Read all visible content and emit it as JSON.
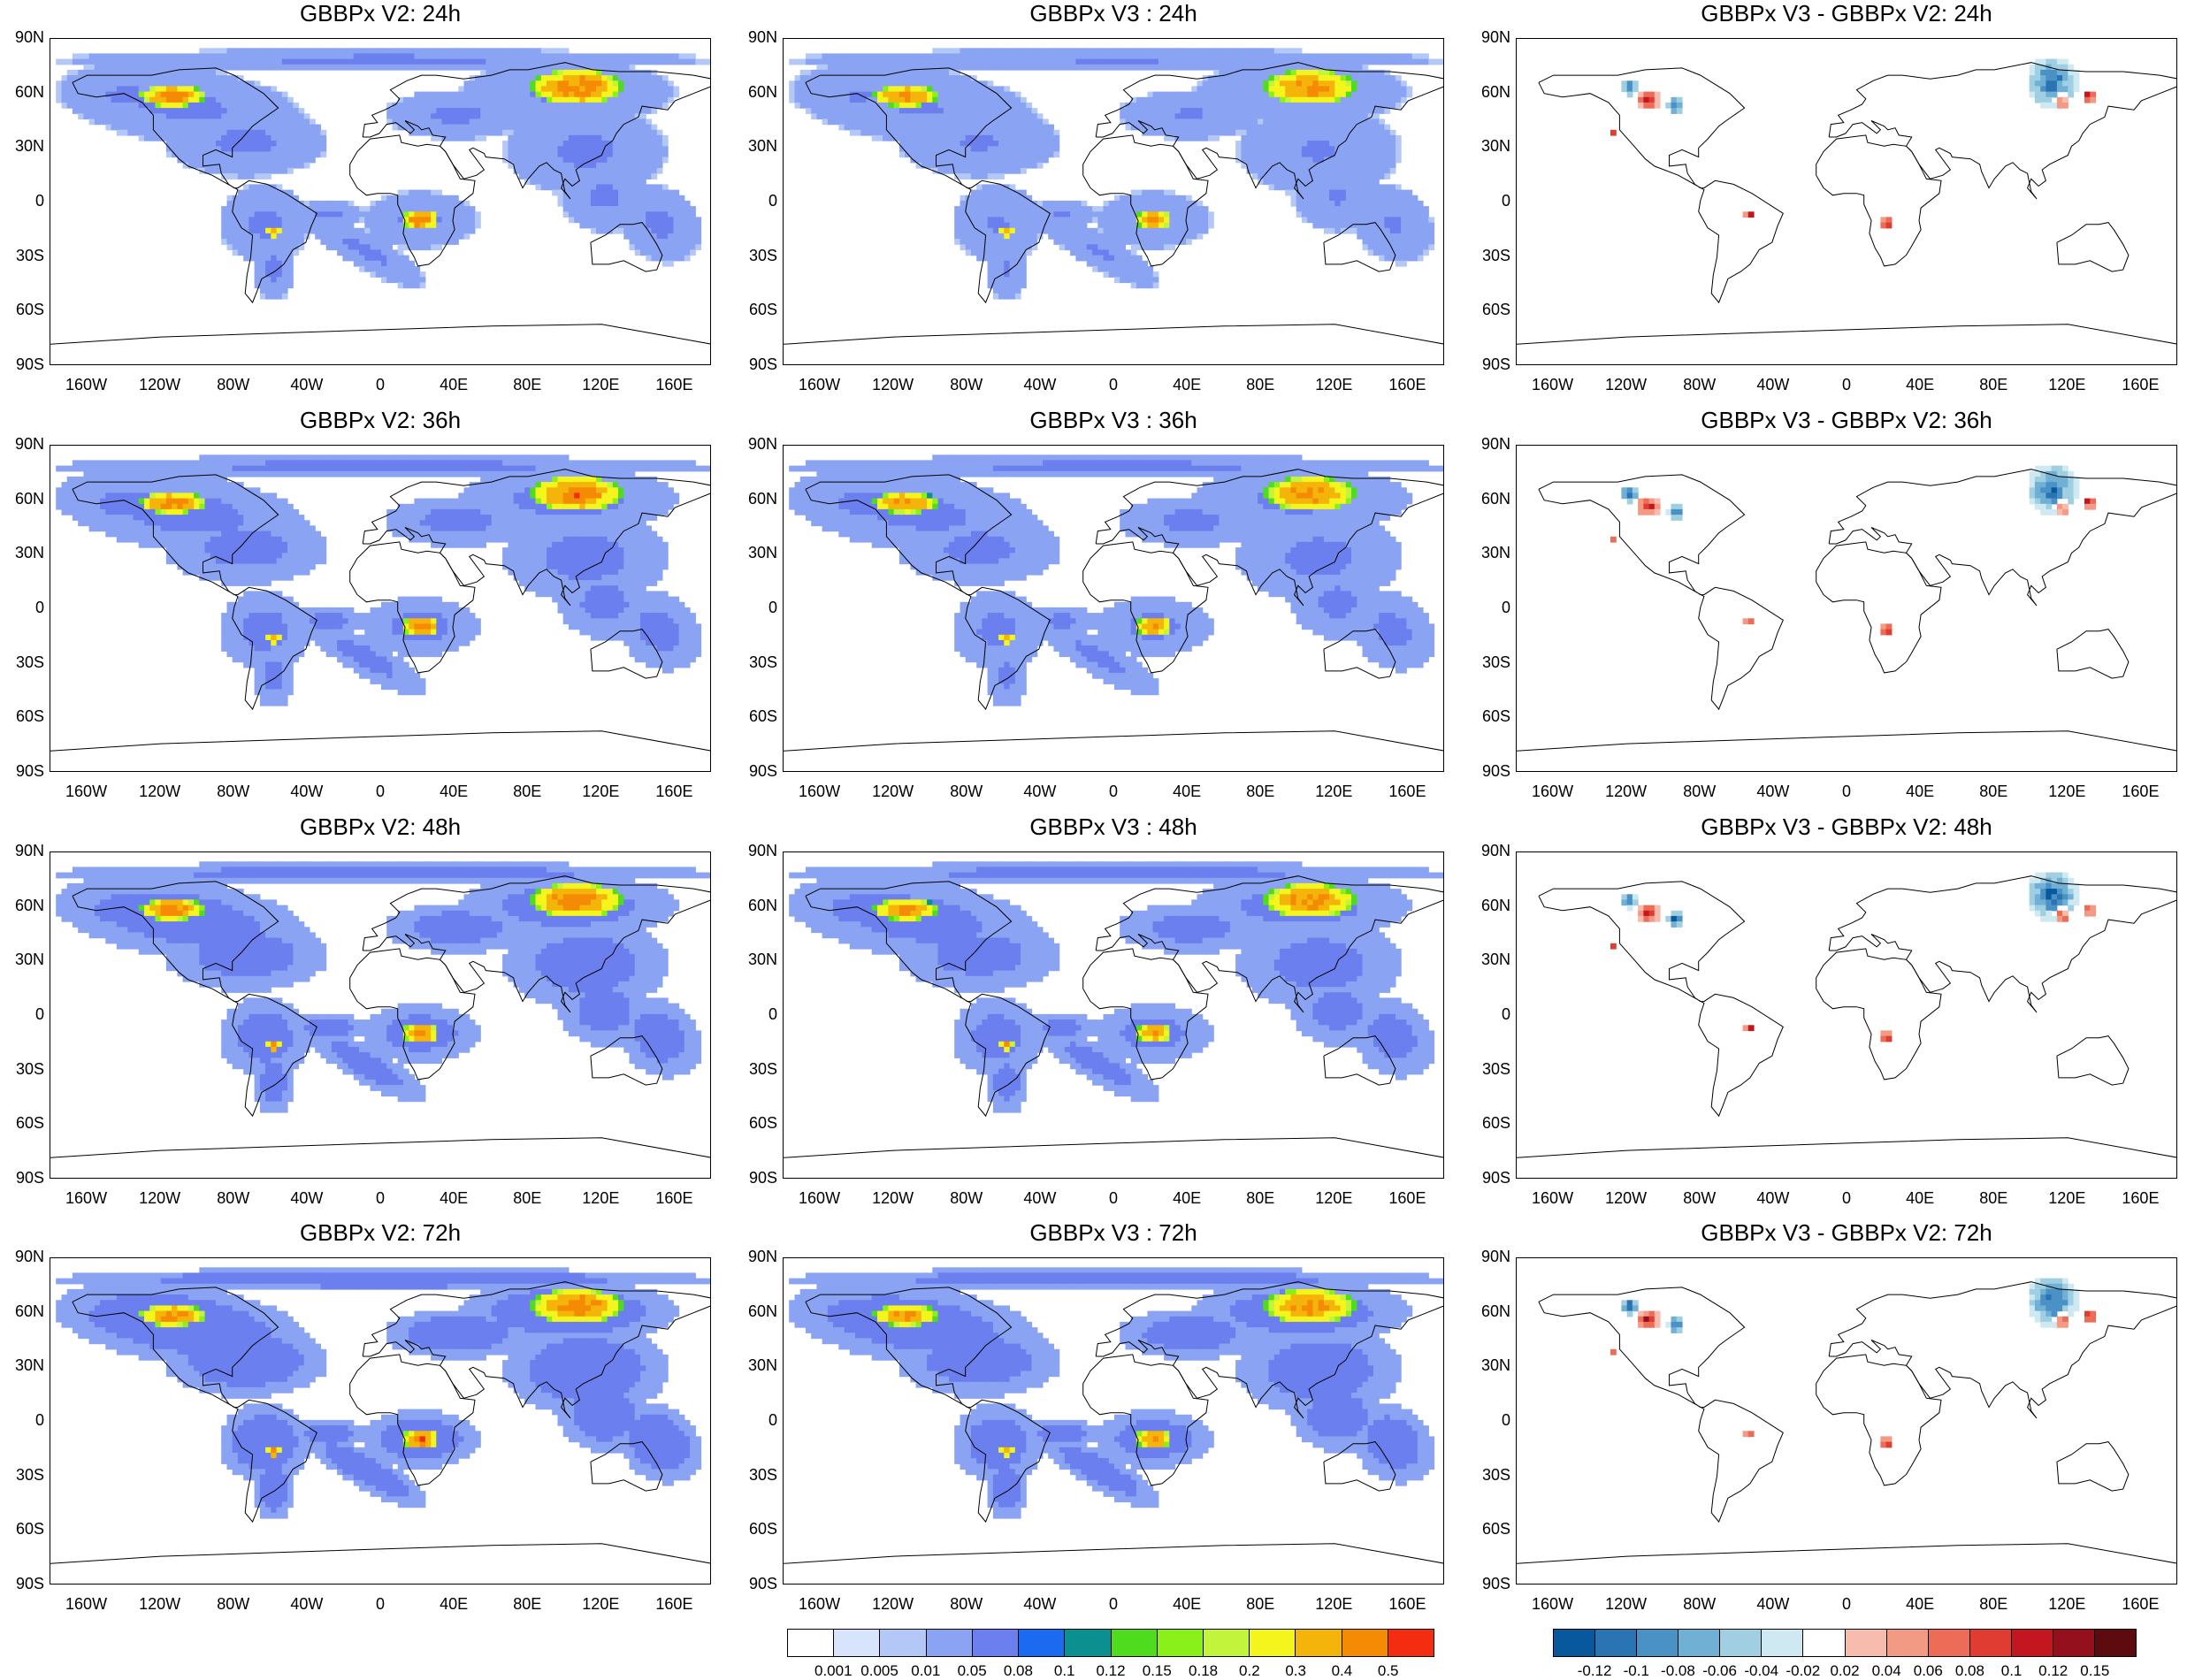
{
  "titles": [
    [
      "GBBPx V2: 24h",
      "GBBPx V3 : 24h",
      "GBBPx V3 - GBBPx V2: 24h"
    ],
    [
      "GBBPx V2: 36h",
      "GBBPx V3 : 36h",
      "GBBPx V3 - GBBPx V2: 36h"
    ],
    [
      "GBBPx V2: 48h",
      "GBBPx V3 : 48h",
      "GBBPx V3 - GBBPx V2: 48h"
    ],
    [
      "GBBPx V2: 72h",
      "GBBPx V3 : 72h",
      "GBBPx V3 - GBBPx V2: 72h"
    ]
  ],
  "lat_labels": [
    "90N",
    "60N",
    "30N",
    "0",
    "30S",
    "60S",
    "90S"
  ],
  "lon_labels": [
    "160W",
    "120W",
    "80W",
    "40W",
    "0",
    "40E",
    "80E",
    "120E",
    "160E"
  ],
  "colorbar_abs": {
    "labels": [
      "0.001",
      "0.005",
      "0.01",
      "0.05",
      "0.08",
      "0.1",
      "0.12",
      "0.15",
      "0.18",
      "0.2",
      "0.3",
      "0.4",
      "0.5"
    ],
    "colors": [
      "#ffffff",
      "#d8e4fb",
      "#b4c8f8",
      "#8aa3f2",
      "#6b7fee",
      "#1a6bf0",
      "#0c8f8f",
      "#4fdc1e",
      "#8af01a",
      "#c2f43c",
      "#f5f51e",
      "#f5b40a",
      "#f58a05",
      "#f42d10"
    ]
  },
  "colorbar_diff": {
    "labels": [
      "-0.12",
      "-0.1",
      "-0.08",
      "-0.06",
      "-0.04",
      "-0.02",
      "0.02",
      "0.04",
      "0.06",
      "0.08",
      "0.1",
      "0.12",
      "0.15"
    ],
    "colors": [
      "#08589e",
      "#2b74b4",
      "#4a92c6",
      "#6fb0d4",
      "#9fcfe1",
      "#cfe9f2",
      "#ffffff",
      "#f8bcae",
      "#f39a84",
      "#ec6c58",
      "#e03c32",
      "#c3161f",
      "#93101c",
      "#5e0b0f"
    ]
  }
}
